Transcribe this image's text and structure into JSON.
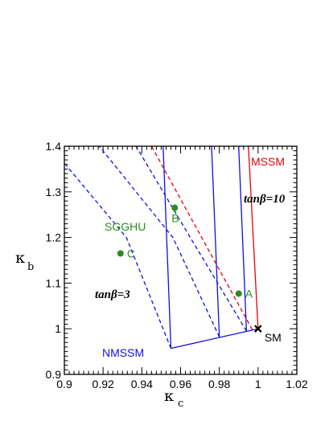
{
  "chart_data": {
    "type": "line",
    "xlabel": "κ",
    "xlabel_sub": "c",
    "ylabel": "κ",
    "ylabel_sub": "b",
    "xlim": [
      0.9,
      1.02
    ],
    "ylim": [
      0.9,
      1.4
    ],
    "xticks": [
      "0.9",
      "0.92",
      "0.94",
      "0.96",
      "0.98",
      "1",
      "1.02"
    ],
    "yticks": [
      "0.9",
      "1",
      "1.1",
      "1.2",
      "1.3",
      "1.4"
    ],
    "grid": false,
    "series": [
      {
        "name": "MSSM",
        "color": "#e8000b",
        "style": "solid",
        "points": [
          [
            1.0,
            1.0
          ],
          [
            0.995,
            1.4
          ]
        ]
      },
      {
        "name": "",
        "color": "#e8000b",
        "style": "dashed",
        "points": [
          [
            0.997,
            0.998
          ],
          [
            0.945,
            1.4
          ]
        ]
      },
      {
        "name": "NMSSM",
        "color": "#1010e0",
        "style": "solid",
        "points": [
          [
            0.955,
            0.957
          ],
          [
            1.0,
            1.0
          ]
        ]
      },
      {
        "name": "",
        "color": "#1010e0",
        "style": "solid",
        "points": [
          [
            0.955,
            0.957
          ],
          [
            0.951,
            1.4
          ]
        ]
      },
      {
        "name": "",
        "color": "#1010e0",
        "style": "solid",
        "points": [
          [
            0.98,
            0.982
          ],
          [
            0.976,
            1.4
          ]
        ]
      },
      {
        "name": "",
        "color": "#1010e0",
        "style": "solid",
        "points": [
          [
            0.994,
            0.995
          ],
          [
            0.99,
            1.4
          ]
        ]
      },
      {
        "name": "",
        "color": "#1010e0",
        "style": "dashed",
        "points": [
          [
            0.955,
            0.957
          ],
          [
            0.932,
            1.2
          ],
          [
            0.9,
            1.363
          ]
        ]
      },
      {
        "name": "",
        "color": "#1010e0",
        "style": "dashed",
        "points": [
          [
            0.98,
            0.982
          ],
          [
            0.956,
            1.2
          ],
          [
            0.918,
            1.4
          ]
        ]
      },
      {
        "name": "",
        "color": "#1010e0",
        "style": "dashed",
        "points": [
          [
            0.994,
            0.995
          ],
          [
            0.965,
            1.2
          ],
          [
            0.937,
            1.4
          ]
        ]
      }
    ],
    "points": [
      {
        "label": "A",
        "x": 0.99,
        "y": 1.077
      },
      {
        "label": "B",
        "x": 0.957,
        "y": 1.265
      },
      {
        "label": "C",
        "x": 0.929,
        "y": 1.165
      }
    ],
    "sm_point": {
      "label": "SM",
      "x": 1.0,
      "y": 1.0
    },
    "annotations": {
      "mssm": "MSSM",
      "nmssm": "NMSSM",
      "sgghu": "SGGHU",
      "tanb10_prefix": "tan",
      "tanb10_suffix": "β=10",
      "tanb3_prefix": "tan",
      "tanb3_suffix": "β=3"
    },
    "colors": {
      "mssm": "#e8000b",
      "nmssm": "#1010e0",
      "sgghu": "#2a8c1e"
    }
  }
}
